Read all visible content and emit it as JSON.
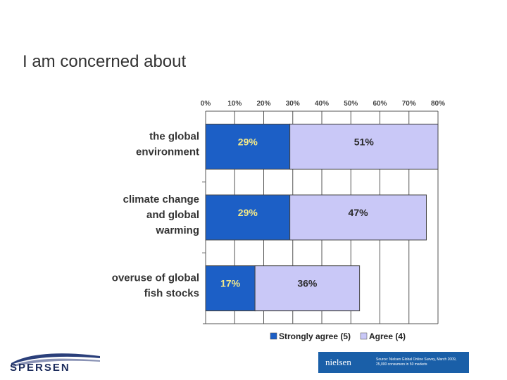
{
  "slide": {
    "title": "I am concerned about"
  },
  "chart_data": {
    "type": "bar",
    "orientation": "horizontal",
    "stacked": true,
    "title": "I am concerned about",
    "categories": [
      [
        "the global",
        "environment"
      ],
      [
        "climate change",
        "and global",
        "warming"
      ],
      [
        "overuse of global",
        "fish stocks"
      ]
    ],
    "series": [
      {
        "name": "Strongly agree (5)",
        "values": [
          29,
          29,
          17
        ],
        "color": "#1c5fc6",
        "label_color": "#f3e98a"
      },
      {
        "name": "Agree (4)",
        "values": [
          51,
          47,
          36
        ],
        "color": "#c9c8f7",
        "label_color": "#2a2a2a"
      }
    ],
    "x_ticks": [
      "0%",
      "10%",
      "20%",
      "30%",
      "40%",
      "50%",
      "60%",
      "70%",
      "80%"
    ],
    "xlim": [
      0,
      80
    ],
    "xaxis_position": "top",
    "grid": true,
    "legend": "bottom"
  },
  "footer": {
    "logo_text": "SPERSEN",
    "source_brand": "nielsen",
    "source_text": "Source: Nielsen Global Online Survey, March 2009, 25,000 consumers in 50 markets"
  }
}
